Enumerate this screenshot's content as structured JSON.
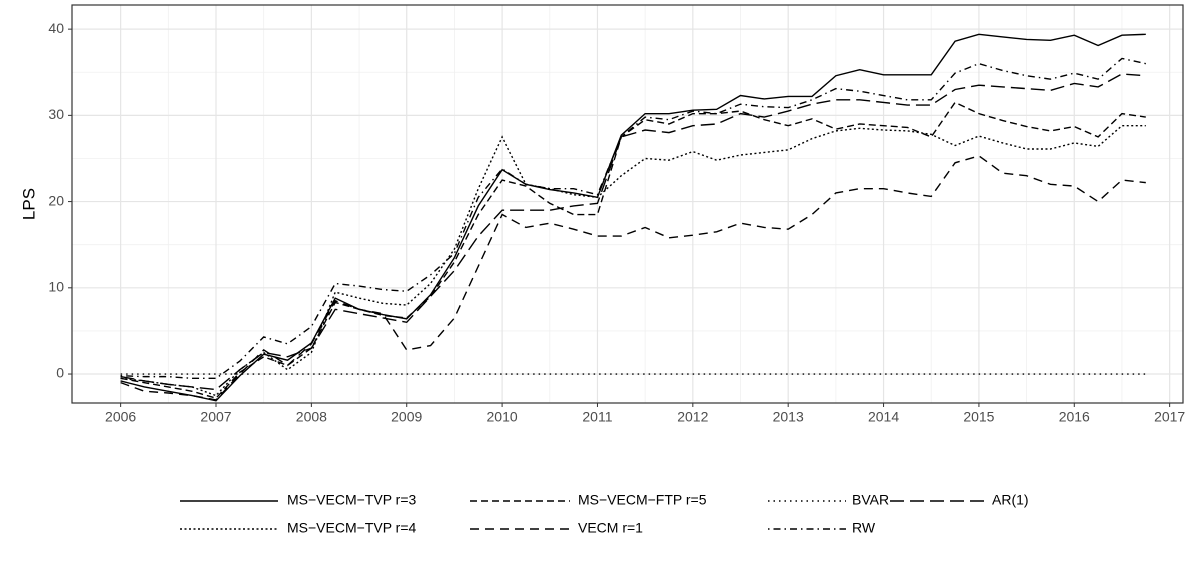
{
  "chart_data": {
    "type": "line",
    "ylabel": "LPS",
    "x": [
      2006,
      2006.25,
      2006.5,
      2006.75,
      2007,
      2007.25,
      2007.5,
      2007.75,
      2008,
      2008.25,
      2008.5,
      2008.75,
      2009,
      2009.25,
      2009.5,
      2009.75,
      2010,
      2010.25,
      2010.5,
      2010.75,
      2011,
      2011.25,
      2011.5,
      2011.75,
      2012,
      2012.25,
      2012.5,
      2012.75,
      2013,
      2013.25,
      2013.5,
      2013.75,
      2014,
      2014.25,
      2014.5,
      2014.75,
      2015,
      2015.25,
      2015.5,
      2015.75,
      2016,
      2016.25,
      2016.5,
      2016.75
    ],
    "xlim": [
      2005.49,
      2017.14
    ],
    "xticks": [
      2006,
      2007,
      2008,
      2009,
      2010,
      2011,
      2012,
      2013,
      2014,
      2015,
      2016,
      2017
    ],
    "ylim": [
      -3.36,
      42.8
    ],
    "yticks": [
      0,
      10,
      20,
      30,
      40
    ],
    "grid": true,
    "legend": "bottom",
    "series": [
      {
        "name": "MS−VECM−TVP r=3",
        "color": "#000000",
        "linetype": "solid",
        "values": [
          -0.8,
          -1.5,
          -2.0,
          -2.5,
          -3.1,
          -0.2,
          2.3,
          1.6,
          3.6,
          8.8,
          7.5,
          6.9,
          6.4,
          9.2,
          13.5,
          19.5,
          23.7,
          22.0,
          21.4,
          21.0,
          20.5,
          27.7,
          30.2,
          30.2,
          30.6,
          30.7,
          32.3,
          31.9,
          32.2,
          32.2,
          34.6,
          35.3,
          34.7,
          34.7,
          34.7,
          38.6,
          39.4,
          39.1,
          38.8,
          38.7,
          39.3,
          38.1,
          39.3,
          39.4
        ]
      },
      {
        "name": "MS−VECM−FTP r=5",
        "color": "#000000",
        "linetype": "dashed",
        "values": [
          -0.5,
          -1.0,
          -1.5,
          -2.0,
          -2.8,
          0.2,
          2.0,
          1.0,
          3.0,
          8.3,
          7.5,
          6.8,
          6.5,
          9.0,
          13.0,
          18.5,
          22.5,
          21.8,
          19.8,
          18.5,
          18.5,
          27.5,
          29.5,
          29.0,
          30.2,
          30.2,
          30.5,
          29.5,
          28.8,
          29.6,
          28.4,
          29.0,
          28.8,
          28.6,
          27.5,
          31.5,
          30.2,
          29.4,
          28.7,
          28.2,
          28.7,
          27.5,
          30.2,
          29.8
        ]
      },
      {
        "name": "BVAR",
        "color": "#000000",
        "linetype": "dotted",
        "values": [
          0,
          0,
          0,
          0,
          0,
          0,
          0,
          0,
          0,
          0,
          0,
          0,
          0,
          0,
          0,
          0,
          0,
          0,
          0,
          0,
          0,
          0,
          0,
          0,
          0,
          0,
          0,
          0,
          0,
          0,
          0,
          0,
          0,
          0,
          0,
          0,
          0,
          0,
          0,
          0,
          0,
          0,
          0,
          0
        ]
      },
      {
        "name": "AR(1)",
        "color": "#000000",
        "linetype": "longdash",
        "values": [
          -0.3,
          -0.8,
          -1.2,
          -1.5,
          -1.8,
          0.5,
          2.5,
          2.0,
          3.0,
          7.5,
          7.0,
          6.5,
          6.0,
          9.0,
          12.0,
          16.0,
          19.0,
          19.0,
          19.0,
          19.5,
          19.8,
          27.5,
          28.3,
          28.0,
          28.8,
          29.0,
          30.2,
          29.8,
          30.5,
          31.3,
          31.8,
          31.8,
          31.5,
          31.2,
          31.2,
          33.0,
          33.5,
          33.3,
          33.1,
          32.9,
          33.7,
          33.3,
          34.8,
          34.6
        ]
      },
      {
        "name": "MS−VECM−TVP r=4",
        "color": "#000000",
        "linetype": "densedot",
        "values": [
          -0.5,
          -0.8,
          -1.2,
          -1.5,
          -2.5,
          0.5,
          2.5,
          0.5,
          2.5,
          9.5,
          8.8,
          8.2,
          8.0,
          10.5,
          14.5,
          21.5,
          27.5,
          22.0,
          21.5,
          20.8,
          20.5,
          23.0,
          25.0,
          24.8,
          25.8,
          24.8,
          25.4,
          25.7,
          26.0,
          27.3,
          28.2,
          28.5,
          28.3,
          28.2,
          27.8,
          26.5,
          27.6,
          26.8,
          26.1,
          26.1,
          26.8,
          26.4,
          28.8,
          28.8
        ]
      },
      {
        "name": "VECM r=1",
        "color": "#000000",
        "linetype": "mediumdash",
        "values": [
          -1.0,
          -2.0,
          -2.2,
          -2.5,
          -3.0,
          0.0,
          2.8,
          1.0,
          3.5,
          8.5,
          7.5,
          7.0,
          2.8,
          3.3,
          6.5,
          12.5,
          18.5,
          17.0,
          17.5,
          16.8,
          16.0,
          16.0,
          17.0,
          15.8,
          16.1,
          16.5,
          17.5,
          17.0,
          16.8,
          18.5,
          21.0,
          21.5,
          21.5,
          21.0,
          20.6,
          24.5,
          25.3,
          23.3,
          23.0,
          22.0,
          21.8,
          20.0,
          22.5,
          22.2
        ]
      },
      {
        "name": "RW",
        "color": "#000000",
        "linetype": "dotdash",
        "values": [
          -0.2,
          -0.3,
          -0.3,
          -0.5,
          -0.5,
          1.5,
          4.3,
          3.5,
          5.5,
          10.5,
          10.2,
          9.8,
          9.6,
          11.5,
          14.0,
          20.5,
          23.8,
          22.0,
          21.5,
          21.5,
          20.8,
          27.5,
          29.8,
          29.5,
          30.5,
          30.2,
          31.3,
          31.0,
          30.9,
          31.8,
          33.1,
          32.8,
          32.3,
          31.8,
          31.8,
          34.9,
          36.0,
          35.2,
          34.6,
          34.2,
          34.9,
          34.2,
          36.6,
          36.0
        ]
      }
    ]
  }
}
